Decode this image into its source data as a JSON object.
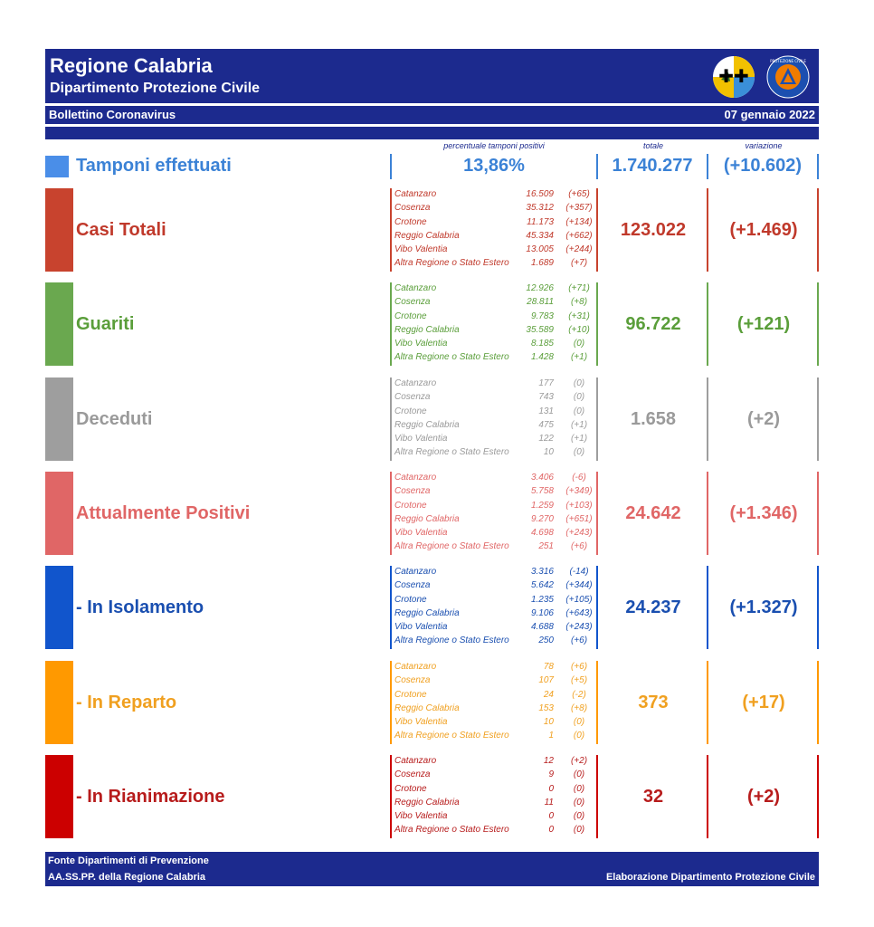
{
  "header": {
    "title": "Regione Calabria",
    "subtitle": "Dipartimento Protezione Civile",
    "bulletin": "Bollettino Coronavirus",
    "date": "07 gennaio 2022",
    "logos": [
      "calabria-coat-of-arms-icon",
      "protezione-civile-logo-icon"
    ],
    "logo_text": "PROTEZIONE CIVILE"
  },
  "columns": {
    "perc": "percentuale tamponi positivi",
    "total": "totale",
    "change": "variazione"
  },
  "tamponi": {
    "label": "Tamponi effettuati",
    "percent": "13,86%",
    "total": "1.740.277",
    "change": "(+10.602)",
    "color": "#3b82d6"
  },
  "categories": [
    {
      "label": "Casi Totali",
      "bar_color": "#c8432e",
      "text_color": "#c0392b",
      "total": "123.022",
      "change": "(+1.469)",
      "rows": [
        {
          "name": "Catanzaro",
          "value": "16.509",
          "delta": "(+65)"
        },
        {
          "name": "Cosenza",
          "value": "35.312",
          "delta": "(+357)"
        },
        {
          "name": "Crotone",
          "value": "11.173",
          "delta": "(+134)"
        },
        {
          "name": "Reggio Calabria",
          "value": "45.334",
          "delta": "(+662)"
        },
        {
          "name": "Vibo Valentia",
          "value": "13.005",
          "delta": "(+244)"
        },
        {
          "name": "Altra Regione o Stato Estero",
          "value": "1.689",
          "delta": "(+7)"
        }
      ]
    },
    {
      "label": "Guariti",
      "bar_color": "#6aa84f",
      "text_color": "#5a9e3a",
      "total": "96.722",
      "change": "(+121)",
      "rows": [
        {
          "name": "Catanzaro",
          "value": "12.926",
          "delta": "(+71)"
        },
        {
          "name": "Cosenza",
          "value": "28.811",
          "delta": "(+8)"
        },
        {
          "name": "Crotone",
          "value": "9.783",
          "delta": "(+31)"
        },
        {
          "name": "Reggio Calabria",
          "value": "35.589",
          "delta": "(+10)"
        },
        {
          "name": "Vibo Valentia",
          "value": "8.185",
          "delta": "(0)"
        },
        {
          "name": "Altra Regione o Stato Estero",
          "value": "1.428",
          "delta": "(+1)"
        }
      ]
    },
    {
      "label": "Deceduti",
      "bar_color": "#9e9e9e",
      "text_color": "#9a9a9a",
      "total": "1.658",
      "change": "(+2)",
      "rows": [
        {
          "name": "Catanzaro",
          "value": "177",
          "delta": "(0)"
        },
        {
          "name": "Cosenza",
          "value": "743",
          "delta": "(0)"
        },
        {
          "name": "Crotone",
          "value": "131",
          "delta": "(0)"
        },
        {
          "name": "Reggio Calabria",
          "value": "475",
          "delta": "(+1)"
        },
        {
          "name": "Vibo Valentia",
          "value": "122",
          "delta": "(+1)"
        },
        {
          "name": "Altra Regione o Stato Estero",
          "value": "10",
          "delta": "(0)"
        }
      ]
    },
    {
      "label": "Attualmente Positivi",
      "bar_color": "#e06666",
      "text_color": "#e06666",
      "total": "24.642",
      "change": "(+1.346)",
      "rows": [
        {
          "name": "Catanzaro",
          "value": "3.406",
          "delta": "(-6)"
        },
        {
          "name": "Cosenza",
          "value": "5.758",
          "delta": "(+349)"
        },
        {
          "name": "Crotone",
          "value": "1.259",
          "delta": "(+103)"
        },
        {
          "name": "Reggio Calabria",
          "value": "9.270",
          "delta": "(+651)"
        },
        {
          "name": "Vibo Valentia",
          "value": "4.698",
          "delta": "(+243)"
        },
        {
          "name": "Altra Regione o Stato Estero",
          "value": "251",
          "delta": "(+6)"
        }
      ]
    },
    {
      "label": "- In Isolamento",
      "bar_color": "#1155cc",
      "text_color": "#1a4fb0",
      "total": "24.237",
      "change": "(+1.327)",
      "rows": [
        {
          "name": "Catanzaro",
          "value": "3.316",
          "delta": "(-14)"
        },
        {
          "name": "Cosenza",
          "value": "5.642",
          "delta": "(+344)"
        },
        {
          "name": "Crotone",
          "value": "1.235",
          "delta": "(+105)"
        },
        {
          "name": "Reggio Calabria",
          "value": "9.106",
          "delta": "(+643)"
        },
        {
          "name": "Vibo Valentia",
          "value": "4.688",
          "delta": "(+243)"
        },
        {
          "name": "Altra Regione o Stato Estero",
          "value": "250",
          "delta": "(+6)"
        }
      ]
    },
    {
      "label": "- In Reparto",
      "bar_color": "#ff9900",
      "text_color": "#f0a020",
      "total": "373",
      "change": "(+17)",
      "rows": [
        {
          "name": "Catanzaro",
          "value": "78",
          "delta": "(+6)"
        },
        {
          "name": "Cosenza",
          "value": "107",
          "delta": "(+5)"
        },
        {
          "name": "Crotone",
          "value": "24",
          "delta": "(-2)"
        },
        {
          "name": "Reggio Calabria",
          "value": "153",
          "delta": "(+8)"
        },
        {
          "name": "Vibo Valentia",
          "value": "10",
          "delta": "(0)"
        },
        {
          "name": "Altra Regione o Stato Estero",
          "value": "1",
          "delta": "(0)"
        }
      ]
    },
    {
      "label": "- In Rianimazione",
      "bar_color": "#cc0000",
      "text_color": "#b71c1c",
      "total": "32",
      "change": "(+2)",
      "rows": [
        {
          "name": "Catanzaro",
          "value": "12",
          "delta": "(+2)"
        },
        {
          "name": "Cosenza",
          "value": "9",
          "delta": "(0)"
        },
        {
          "name": "Crotone",
          "value": "0",
          "delta": "(0)"
        },
        {
          "name": "Reggio Calabria",
          "value": "11",
          "delta": "(0)"
        },
        {
          "name": "Vibo Valentia",
          "value": "0",
          "delta": "(0)"
        },
        {
          "name": "Altra Regione o Stato Estero",
          "value": "0",
          "delta": "(0)"
        }
      ]
    }
  ],
  "footer": {
    "line1": "Fonte Dipartimenti di Prevenzione",
    "line2": "AA.SS.PP.  della Regione Calabria",
    "right": "Elaborazione Dipartimento Protezione Civile"
  }
}
